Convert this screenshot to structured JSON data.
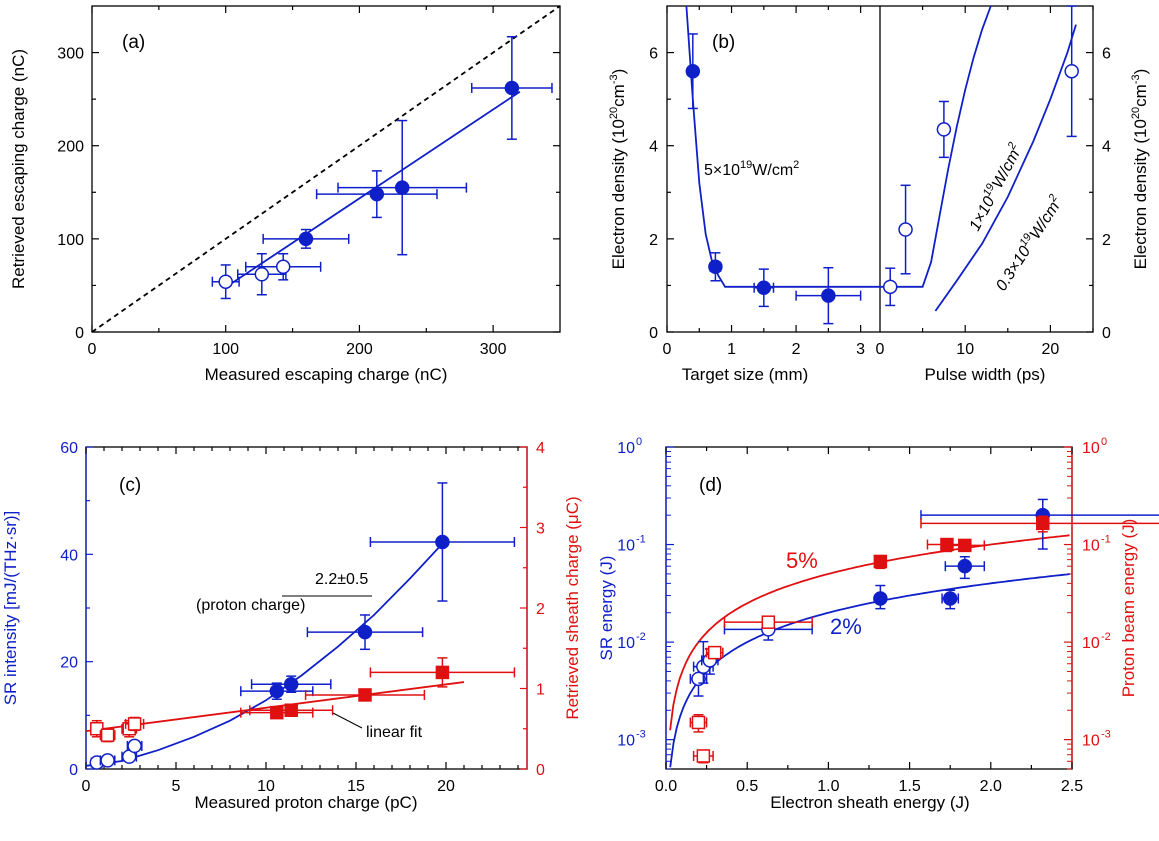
{
  "chart_data": [
    {
      "panel": "(a)",
      "type": "scatter",
      "xlabel": "Measured escaping charge (nC)",
      "ylabel": "Retrieved escaping charge (nC)",
      "xlim": [
        0,
        350
      ],
      "ylim": [
        0,
        350
      ],
      "xticks": [
        "0",
        "100",
        "200",
        "300"
      ],
      "yticks": [
        "0",
        "100",
        "200",
        "300"
      ],
      "series": [
        {
          "marker": "filled-circle",
          "color": "#1020c8",
          "points": [
            {
              "x": 160,
              "y": 100,
              "xerr": 32,
              "yerr": 10
            },
            {
              "x": 213,
              "y": 148,
              "xerr": 45,
              "yerr": 25
            },
            {
              "x": 232,
              "y": 155,
              "xerr": 48,
              "yerr": 72
            },
            {
              "x": 314,
              "y": 262,
              "xerr": 30,
              "yerr": 55
            }
          ]
        },
        {
          "marker": "open-circle",
          "color": "#1020c8",
          "points": [
            {
              "x": 100,
              "y": 54,
              "xerr": 10,
              "yerr": 18
            },
            {
              "x": 127,
              "y": 62,
              "xerr": 18,
              "yerr": 22
            },
            {
              "x": 143,
              "y": 70,
              "xerr": 28,
              "yerr": 14
            }
          ]
        }
      ],
      "fit_line": {
        "x": [
          100,
          320
        ],
        "y": [
          48,
          258
        ],
        "color": "#1020c8"
      },
      "reference_line": {
        "x": [
          0,
          350
        ],
        "y": [
          0,
          350
        ],
        "style": "dashed"
      }
    },
    {
      "panel": "(b)",
      "type": "scatter",
      "left": {
        "xlabel": "Target size (mm)",
        "xlim": [
          0,
          3.3
        ],
        "xticks": [
          "0",
          "1",
          "2",
          "3"
        ],
        "ylabel": "Electron density (10<sup>20</sup>cm<sup>-3</sup>)",
        "ylabel_parts": [
          "Electron density (10",
          "20",
          "cm",
          "-3",
          ")"
        ],
        "ylim": [
          0,
          7
        ],
        "yticks": [
          "0",
          "2",
          "4",
          "6"
        ],
        "points": [
          {
            "x": 0.4,
            "y": 5.6,
            "xerr": 0.06,
            "yerr": 0.8
          },
          {
            "x": 0.75,
            "y": 1.4,
            "xerr": 0.08,
            "yerr": 0.3
          },
          {
            "x": 1.5,
            "y": 0.95,
            "xerr": 0.15,
            "yerr": 0.4
          },
          {
            "x": 2.5,
            "y": 0.78,
            "xerr": 0.5,
            "yerr": 0.6
          }
        ],
        "curve": {
          "x": [
            0.3,
            0.4,
            0.5,
            0.6,
            0.7,
            0.8,
            0.9,
            1.0,
            1.5,
            2.0,
            2.5,
            3.3
          ],
          "y": [
            7.0,
            5.0,
            3.2,
            2.1,
            1.5,
            1.2,
            0.97,
            0.97,
            0.97,
            0.97,
            0.97,
            0.97
          ]
        },
        "annotation_parts": [
          "5×10",
          "19",
          "W/cm",
          "2"
        ]
      },
      "right": {
        "xlabel": "Pulse width (ps)",
        "xlim": [
          0,
          25
        ],
        "xticks": [
          "0",
          "10",
          "20"
        ],
        "ylabel_parts": [
          "Electron density (10",
          "20",
          "cm",
          "-3",
          ")"
        ],
        "ylim": [
          0,
          7
        ],
        "yticks": [
          "0",
          "2",
          "4",
          "6"
        ],
        "points": [
          {
            "x": 1.2,
            "y": 0.97,
            "xerr": 0,
            "yerr": 0.4
          },
          {
            "x": 3.0,
            "y": 2.2,
            "xerr": 0,
            "yerr": 0.95
          },
          {
            "x": 7.5,
            "y": 4.35,
            "xerr": 0,
            "yerr": 0.6
          },
          {
            "x": 22.5,
            "y": 5.6,
            "xerr": 0,
            "yerr": 1.4
          }
        ],
        "curves": [
          {
            "label_parts": [
              "1×10",
              "19",
              "W/cm",
              "2"
            ],
            "x": [
              0,
              3,
              5,
              6,
              7,
              8,
              9,
              10,
              11,
              12,
              13
            ],
            "y": [
              0.97,
              0.97,
              0.97,
              1.5,
              2.5,
              3.5,
              4.4,
              5.2,
              5.9,
              6.5,
              7.0
            ]
          },
          {
            "label_parts": [
              "0.3×10",
              "19",
              "W/cm",
              "2"
            ],
            "x": [
              6.5,
              9,
              12,
              15,
              18,
              20,
              22,
              23
            ],
            "y": [
              0.45,
              1.1,
              1.9,
              2.9,
              4.1,
              5.0,
              6.0,
              6.6
            ]
          }
        ]
      }
    },
    {
      "panel": "(c)",
      "type": "scatter",
      "xlabel": "Measured proton charge (pC)",
      "xlim": [
        0,
        24.5
      ],
      "xticks": [
        "0",
        "5",
        "10",
        "15",
        "20"
      ],
      "ylabel_left": "SR intensity [mJ/(THz·sr)]",
      "ylim_left": [
        0,
        60
      ],
      "yticks_left": [
        "0",
        "20",
        "40",
        "60"
      ],
      "ylabel_right": "Retrieved sheath charge (μC)",
      "ylim_right": [
        0,
        4
      ],
      "yticks_right": [
        "0",
        "1",
        "2",
        "3",
        "4"
      ],
      "series": [
        {
          "axis": "left",
          "marker": "filled-circle",
          "color": "#1020c8",
          "points": [
            {
              "x": 10.6,
              "y": 14.5,
              "xerr": 2.0,
              "yerr": 1.5
            },
            {
              "x": 11.4,
              "y": 15.8,
              "xerr": 2.2,
              "yerr": 1.5
            },
            {
              "x": 15.5,
              "y": 25.5,
              "xerr": 3.2,
              "yerr": 3.2
            },
            {
              "x": 19.8,
              "y": 42.3,
              "xerr": 4.0,
              "yerr": 11
            }
          ]
        },
        {
          "axis": "left",
          "marker": "open-circle",
          "color": "#1020c8",
          "points": [
            {
              "x": 0.6,
              "y": 1.2,
              "xerr": 0.3,
              "yerr": 0.6
            },
            {
              "x": 1.2,
              "y": 1.6,
              "xerr": 0.4,
              "yerr": 0.6
            },
            {
              "x": 2.4,
              "y": 2.3,
              "xerr": 0.4,
              "yerr": 0.7
            },
            {
              "x": 2.7,
              "y": 4.3,
              "xerr": 0.4,
              "yerr": 0.9
            }
          ]
        },
        {
          "axis": "right",
          "marker": "filled-square",
          "color": "#e01010",
          "points": [
            {
              "x": 10.6,
              "y": 0.7,
              "xerr": 2.0,
              "yerr": 0.06
            },
            {
              "x": 11.4,
              "y": 0.73,
              "xerr": 2.3,
              "yerr": 0.06
            },
            {
              "x": 15.5,
              "y": 0.92,
              "xerr": 3.3,
              "yerr": 0.07
            },
            {
              "x": 19.8,
              "y": 1.2,
              "xerr": 4.0,
              "yerr": 0.18
            }
          ]
        },
        {
          "axis": "right",
          "marker": "open-square",
          "color": "#e01010",
          "points": [
            {
              "x": 0.6,
              "y": 0.5,
              "xerr": 0.3,
              "yerr": 0.1
            },
            {
              "x": 1.2,
              "y": 0.42,
              "xerr": 0.4,
              "yerr": 0.08
            },
            {
              "x": 2.4,
              "y": 0.5,
              "xerr": 0.4,
              "yerr": 0.1
            },
            {
              "x": 2.7,
              "y": 0.56,
              "xerr": 0.5,
              "yerr": 0.08
            }
          ]
        }
      ],
      "fit_blue": {
        "x": [
          0,
          2,
          4,
          6,
          8,
          10,
          12,
          14,
          16,
          18,
          20
        ],
        "y": [
          0.6,
          1.5,
          3.5,
          6.0,
          9.0,
          12.8,
          17.5,
          22.8,
          28.7,
          35.5,
          42.7
        ]
      },
      "fit_red": {
        "x": [
          0,
          21
        ],
        "y": [
          0.47,
          1.08
        ]
      },
      "annotations": [
        "2.2±0.5",
        "(proton charge)",
        "linear fit"
      ]
    },
    {
      "panel": "(d)",
      "type": "scatter",
      "xlabel": "Electron sheath energy (J)",
      "xlim": [
        0,
        2.5
      ],
      "xticks": [
        "0.0",
        "0.5",
        "1.0",
        "1.5",
        "2.0",
        "2.5"
      ],
      "ylabel_left": "SR energy (J)",
      "ylabel_right": "Proton beam energy (J)",
      "yscale": "log",
      "ylim": [
        0.0005,
        1
      ],
      "ytick_values": [
        0.001,
        0.01,
        0.1,
        1
      ],
      "ytick_exponents": [
        "-3",
        "-2",
        "-1",
        "0"
      ],
      "series": [
        {
          "marker": "filled-circle",
          "color": "#1020c8",
          "points": [
            {
              "x": 1.32,
              "y": 0.028,
              "xerr": 0,
              "yerr_lo": 0.006,
              "yerr_hi": 0.01
            },
            {
              "x": 1.75,
              "y": 0.028,
              "xerr": 0.05,
              "yerr_lo": 0.006,
              "yerr_hi": 0.006
            },
            {
              "x": 1.84,
              "y": 0.06,
              "xerr": 0.12,
              "yerr_lo": 0.015,
              "yerr_hi": 0.015
            },
            {
              "x": 2.32,
              "y": 0.2,
              "xerr": 0.75,
              "yerr_lo": 0.11,
              "yerr_hi": 0.09
            }
          ]
        },
        {
          "marker": "open-circle",
          "color": "#1020c8",
          "points": [
            {
              "x": 0.2,
              "y": 0.0042,
              "xerr": 0.05,
              "yerr_lo": 0.0014,
              "yerr_hi": 0.0014
            },
            {
              "x": 0.23,
              "y": 0.0056,
              "xerr": 0.06,
              "yerr_lo": 0.0018,
              "yerr_hi": 0.0045
            },
            {
              "x": 0.27,
              "y": 0.0065,
              "xerr": 0.05,
              "yerr_lo": 0.0018,
              "yerr_hi": 0.002
            },
            {
              "x": 0.63,
              "y": 0.0135,
              "xerr": 0.27,
              "yerr_lo": 0.003,
              "yerr_hi": 0.003
            }
          ]
        },
        {
          "marker": "filled-square",
          "color": "#e01010",
          "points": [
            {
              "x": 1.32,
              "y": 0.067,
              "xerr": 0,
              "yerr_lo": 0.01,
              "yerr_hi": 0.01
            },
            {
              "x": 1.73,
              "y": 0.1,
              "xerr": 0.12,
              "yerr_lo": 0.015,
              "yerr_hi": 0.012
            },
            {
              "x": 1.84,
              "y": 0.098,
              "xerr": 0.12,
              "yerr_lo": 0.012,
              "yerr_hi": 0.012
            },
            {
              "x": 2.32,
              "y": 0.165,
              "xerr": 0.75,
              "yerr_lo": 0.03,
              "yerr_hi": 0.03
            }
          ]
        },
        {
          "marker": "open-square",
          "color": "#e01010",
          "points": [
            {
              "x": 0.2,
              "y": 0.0015,
              "xerr": 0.05,
              "yerr_lo": 0.0003,
              "yerr_hi": 0.0003
            },
            {
              "x": 0.23,
              "y": 0.00068,
              "xerr": 0.06,
              "yerr_lo": 0.0001,
              "yerr_hi": 0.0001
            },
            {
              "x": 0.3,
              "y": 0.0078,
              "xerr": 0.05,
              "yerr_lo": 0.001,
              "yerr_hi": 0.001
            },
            {
              "x": 0.63,
              "y": 0.016,
              "xerr": 0.27,
              "yerr_lo": 0.002,
              "yerr_hi": 0.002
            }
          ]
        }
      ],
      "fit_blue": {
        "label": "2%",
        "slope": 0.02
      },
      "fit_red": {
        "label": "5%",
        "slope": 0.05
      }
    }
  ]
}
